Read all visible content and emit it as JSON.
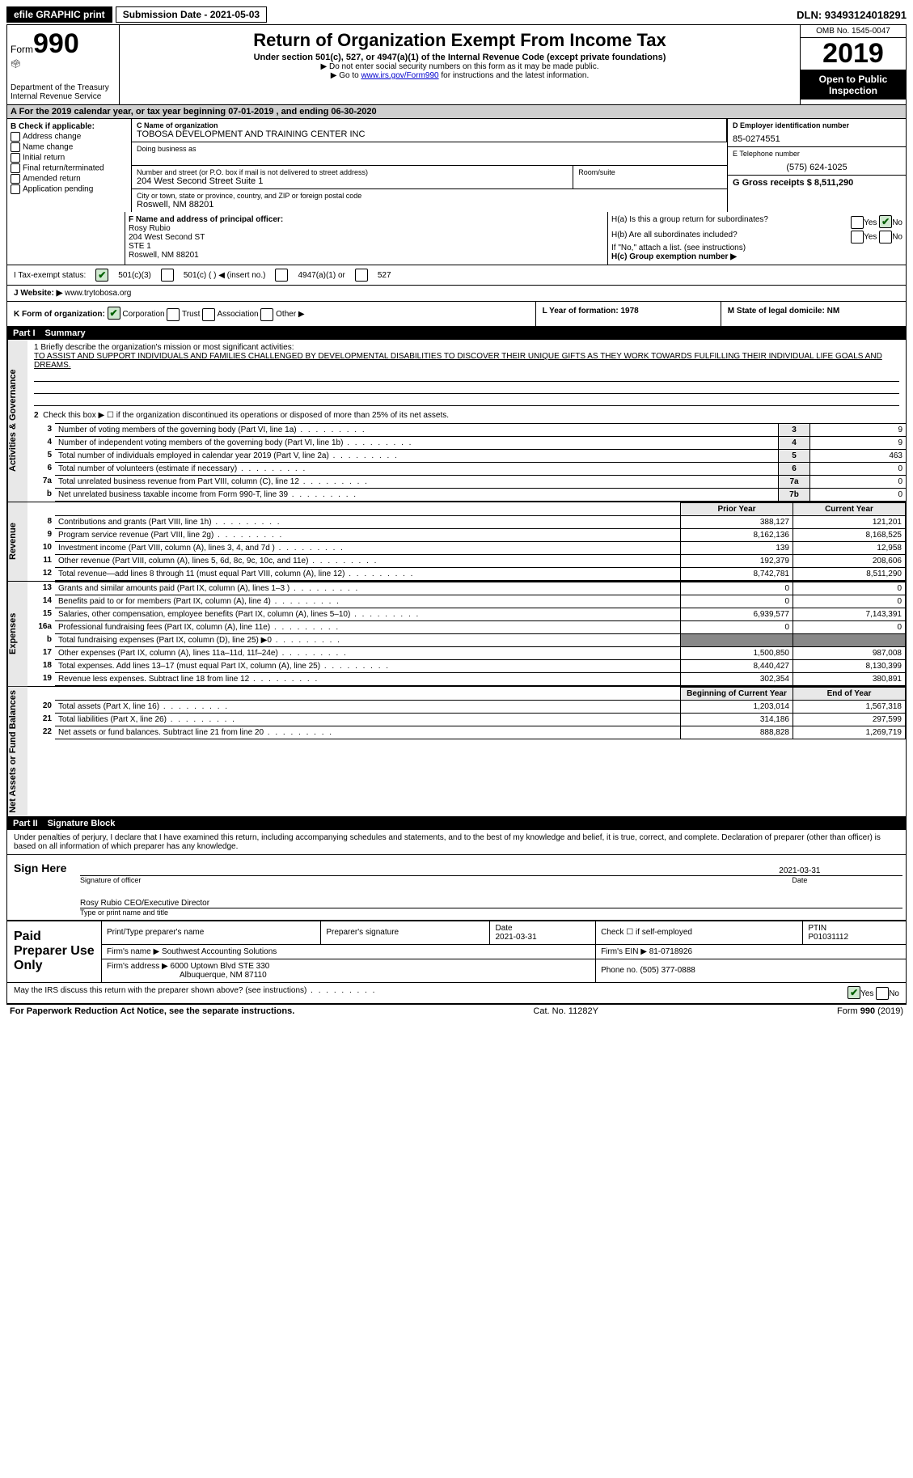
{
  "topbar": {
    "efile": "efile GRAPHIC print",
    "submission_label": "Submission Date - 2021-05-03",
    "dln": "DLN: 93493124018291"
  },
  "header": {
    "form_label": "Form",
    "form_number": "990",
    "dept": "Department of the Treasury",
    "irs": "Internal Revenue Service",
    "title": "Return of Organization Exempt From Income Tax",
    "subtitle": "Under section 501(c), 527, or 4947(a)(1) of the Internal Revenue Code (except private foundations)",
    "note1": "▶ Do not enter social security numbers on this form as it may be made public.",
    "note2_pre": "▶ Go to ",
    "note2_link": "www.irs.gov/Form990",
    "note2_post": " for instructions and the latest information.",
    "omb": "OMB No. 1545-0047",
    "year": "2019",
    "open": "Open to Public Inspection"
  },
  "period": {
    "text_a": "A For the 2019 calendar year, or tax year beginning 07-01-2019   , and ending 06-30-2020"
  },
  "box_b": {
    "title": "B Check if applicable:",
    "opts": [
      "Address change",
      "Name change",
      "Initial return",
      "Final return/terminated",
      "Amended return",
      "Application pending"
    ]
  },
  "box_c": {
    "label": "C Name of organization",
    "name": "TOBOSA DEVELOPMENT AND TRAINING CENTER INC",
    "dba_label": "Doing business as",
    "addr_label": "Number and street (or P.O. box if mail is not delivered to street address)",
    "room_label": "Room/suite",
    "addr": "204 West Second Street Suite 1",
    "city_label": "City or town, state or province, country, and ZIP or foreign postal code",
    "city": "Roswell, NM  88201"
  },
  "box_d": {
    "label": "D Employer identification number",
    "val": "85-0274551"
  },
  "box_e": {
    "label": "E Telephone number",
    "val": "(575) 624-1025"
  },
  "box_g": {
    "label": "G Gross receipts $ 8,511,290"
  },
  "box_f": {
    "label": "F  Name and address of principal officer:",
    "l1": "Rosy Rubio",
    "l2": "204 West Second ST",
    "l3": "STE 1",
    "l4": "Roswell, NM  88201"
  },
  "box_h": {
    "a": "H(a)  Is this a group return for subordinates?",
    "b": "H(b)  Are all subordinates included?",
    "b_note": "If \"No,\" attach a list. (see instructions)",
    "c": "H(c)  Group exemption number ▶",
    "yes": "Yes",
    "no": "No"
  },
  "box_i": {
    "label": "I   Tax-exempt status:",
    "o1": "501(c)(3)",
    "o2": "501(c) (  ) ◀ (insert no.)",
    "o3": "4947(a)(1) or",
    "o4": "527"
  },
  "box_j": {
    "label": "J   Website: ▶",
    "val": "www.trytobosa.org"
  },
  "box_k": {
    "label": "K Form of organization:",
    "o1": "Corporation",
    "o2": "Trust",
    "o3": "Association",
    "o4": "Other ▶"
  },
  "box_l": {
    "label": "L Year of formation: 1978"
  },
  "box_m": {
    "label": "M State of legal domicile: NM"
  },
  "part1": {
    "label": "Part I",
    "title": "Summary"
  },
  "mission": {
    "q": "1   Briefly describe the organization's mission or most significant activities:",
    "text": "TO ASSIST AND SUPPORT INDIVIDUALS AND FAMILIES CHALLENGED BY DEVELOPMENTAL DISABILITIES TO DISCOVER THEIR UNIQUE GIFTS AS THEY WORK TOWARDS FULFILLING THEIR INDIVIDUAL LIFE GOALS AND DREAMS."
  },
  "gov_lines": {
    "l2": "Check this box ▶ ☐  if the organization discontinued its operations or disposed of more than 25% of its net assets.",
    "rows": [
      {
        "n": "3",
        "t": "Number of voting members of the governing body (Part VI, line 1a)",
        "c": "3",
        "v": "9"
      },
      {
        "n": "4",
        "t": "Number of independent voting members of the governing body (Part VI, line 1b)",
        "c": "4",
        "v": "9"
      },
      {
        "n": "5",
        "t": "Total number of individuals employed in calendar year 2019 (Part V, line 2a)",
        "c": "5",
        "v": "463"
      },
      {
        "n": "6",
        "t": "Total number of volunteers (estimate if necessary)",
        "c": "6",
        "v": "0"
      },
      {
        "n": "7a",
        "t": "Total unrelated business revenue from Part VIII, column (C), line 12",
        "c": "7a",
        "v": "0"
      },
      {
        "n": "b",
        "t": "Net unrelated business taxable income from Form 990-T, line 39",
        "c": "7b",
        "v": "0"
      }
    ]
  },
  "sidelabels": {
    "gov": "Activities & Governance",
    "rev": "Revenue",
    "exp": "Expenses",
    "net": "Net Assets or Fund Balances"
  },
  "cols": {
    "prior": "Prior Year",
    "current": "Current Year",
    "beg": "Beginning of Current Year",
    "end": "End of Year"
  },
  "revenue": [
    {
      "n": "8",
      "t": "Contributions and grants (Part VIII, line 1h)",
      "p": "388,127",
      "c": "121,201"
    },
    {
      "n": "9",
      "t": "Program service revenue (Part VIII, line 2g)",
      "p": "8,162,136",
      "c": "8,168,525"
    },
    {
      "n": "10",
      "t": "Investment income (Part VIII, column (A), lines 3, 4, and 7d )",
      "p": "139",
      "c": "12,958"
    },
    {
      "n": "11",
      "t": "Other revenue (Part VIII, column (A), lines 5, 6d, 8c, 9c, 10c, and 11e)",
      "p": "192,379",
      "c": "208,606"
    },
    {
      "n": "12",
      "t": "Total revenue—add lines 8 through 11 (must equal Part VIII, column (A), line 12)",
      "p": "8,742,781",
      "c": "8,511,290"
    }
  ],
  "expenses": [
    {
      "n": "13",
      "t": "Grants and similar amounts paid (Part IX, column (A), lines 1–3 )",
      "p": "0",
      "c": "0"
    },
    {
      "n": "14",
      "t": "Benefits paid to or for members (Part IX, column (A), line 4)",
      "p": "0",
      "c": "0"
    },
    {
      "n": "15",
      "t": "Salaries, other compensation, employee benefits (Part IX, column (A), lines 5–10)",
      "p": "6,939,577",
      "c": "7,143,391"
    },
    {
      "n": "16a",
      "t": "Professional fundraising fees (Part IX, column (A), line 11e)",
      "p": "0",
      "c": "0"
    },
    {
      "n": "b",
      "t": "Total fundraising expenses (Part IX, column (D), line 25) ▶0",
      "p": "GREY",
      "c": "GREY"
    },
    {
      "n": "17",
      "t": "Other expenses (Part IX, column (A), lines 11a–11d, 11f–24e)",
      "p": "1,500,850",
      "c": "987,008"
    },
    {
      "n": "18",
      "t": "Total expenses. Add lines 13–17 (must equal Part IX, column (A), line 25)",
      "p": "8,440,427",
      "c": "8,130,399"
    },
    {
      "n": "19",
      "t": "Revenue less expenses. Subtract line 18 from line 12",
      "p": "302,354",
      "c": "380,891"
    }
  ],
  "netassets": [
    {
      "n": "20",
      "t": "Total assets (Part X, line 16)",
      "p": "1,203,014",
      "c": "1,567,318"
    },
    {
      "n": "21",
      "t": "Total liabilities (Part X, line 26)",
      "p": "314,186",
      "c": "297,599"
    },
    {
      "n": "22",
      "t": "Net assets or fund balances. Subtract line 21 from line 20",
      "p": "888,828",
      "c": "1,269,719"
    }
  ],
  "part2": {
    "label": "Part II",
    "title": "Signature Block"
  },
  "sig": {
    "penalty": "Under penalties of perjury, I declare that I have examined this return, including accompanying schedules and statements, and to the best of my knowledge and belief, it is true, correct, and complete. Declaration of preparer (other than officer) is based on all information of which preparer has any knowledge.",
    "sign_here": "Sign Here",
    "sig_officer": "Signature of officer",
    "date": "Date",
    "sig_date": "2021-03-31",
    "name_title": "Rosy Rubio CEO/Executive Director",
    "name_caption": "Type or print name and title"
  },
  "prep": {
    "left": "Paid Preparer Use Only",
    "h1": "Print/Type preparer's name",
    "h2": "Preparer's signature",
    "h3": "Date",
    "h3v": "2021-03-31",
    "h4": "Check ☐ if self-employed",
    "h5": "PTIN",
    "h5v": "P01031112",
    "firm_name_l": "Firm's name    ▶",
    "firm_name": "Southwest Accounting Solutions",
    "firm_ein_l": "Firm's EIN ▶",
    "firm_ein": "81-0718926",
    "firm_addr_l": "Firm's address ▶",
    "firm_addr1": "6000 Uptown Blvd STE 330",
    "firm_addr2": "Albuquerque, NM  87110",
    "phone_l": "Phone no.",
    "phone": "(505) 377-0888"
  },
  "discuss": {
    "q": "May the IRS discuss this return with the preparer shown above? (see instructions)",
    "yes": "Yes",
    "no": "No"
  },
  "footer": {
    "left": "For Paperwork Reduction Act Notice, see the separate instructions.",
    "mid": "Cat. No. 11282Y",
    "right": "Form 990 (2019)"
  }
}
